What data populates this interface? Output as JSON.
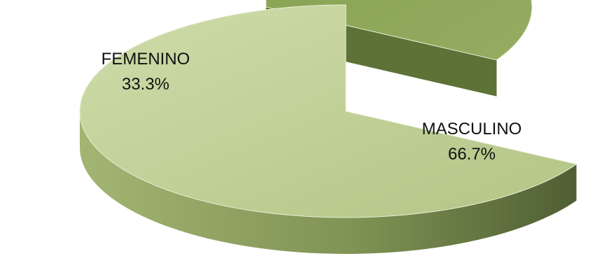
{
  "chart_data": {
    "type": "pie",
    "style": "3d-exploded",
    "title": "",
    "slices": [
      {
        "category": "FEMENINO",
        "value": 33.3,
        "value_label": "33.3%",
        "color": "#8fa65a"
      },
      {
        "category": "MASCULINO",
        "value": 66.7,
        "value_label": "66.7%",
        "color": "#c2d49a"
      }
    ]
  }
}
